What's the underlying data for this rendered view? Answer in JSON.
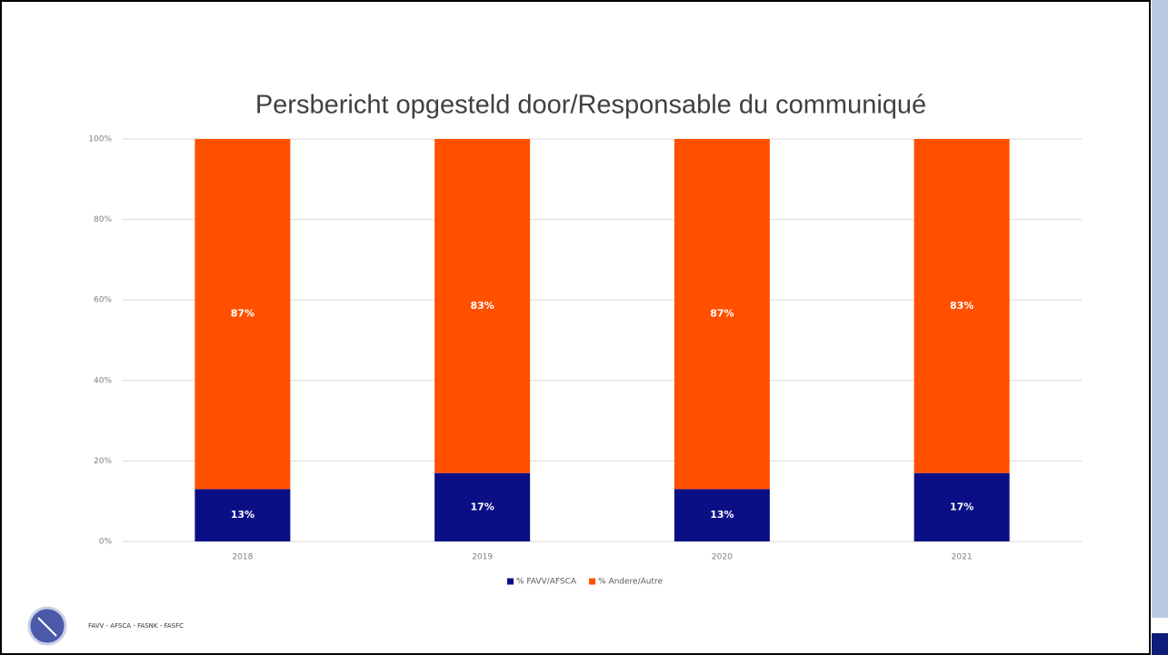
{
  "chart_data": {
    "type": "bar",
    "stacked": true,
    "title": "Persbericht opgesteld door/Responsable du communiqué",
    "categories": [
      "2018",
      "2019",
      "2020",
      "2021"
    ],
    "series": [
      {
        "name": "% FAVV/AFSCA",
        "color": "#0b0f86",
        "values": [
          13,
          17,
          13,
          17
        ],
        "value_labels": [
          "13%",
          "17%",
          "13%",
          "17%"
        ]
      },
      {
        "name": "% Andere/Autre",
        "color": "#ff5000",
        "values": [
          87,
          83,
          87,
          83
        ],
        "value_labels": [
          "87%",
          "83%",
          "87%",
          "83%"
        ]
      }
    ],
    "ylim": [
      0,
      100
    ],
    "yticks": [
      {
        "value": 0,
        "label": "0%"
      },
      {
        "value": 20,
        "label": "20%"
      },
      {
        "value": 40,
        "label": "40%"
      },
      {
        "value": 60,
        "label": "60%"
      },
      {
        "value": 80,
        "label": "80%"
      },
      {
        "value": 100,
        "label": "100%"
      }
    ],
    "grid": true,
    "legend": "bottom"
  },
  "footer": "FAVV  -  AFSCA  -  FASNK  -  FASFC"
}
